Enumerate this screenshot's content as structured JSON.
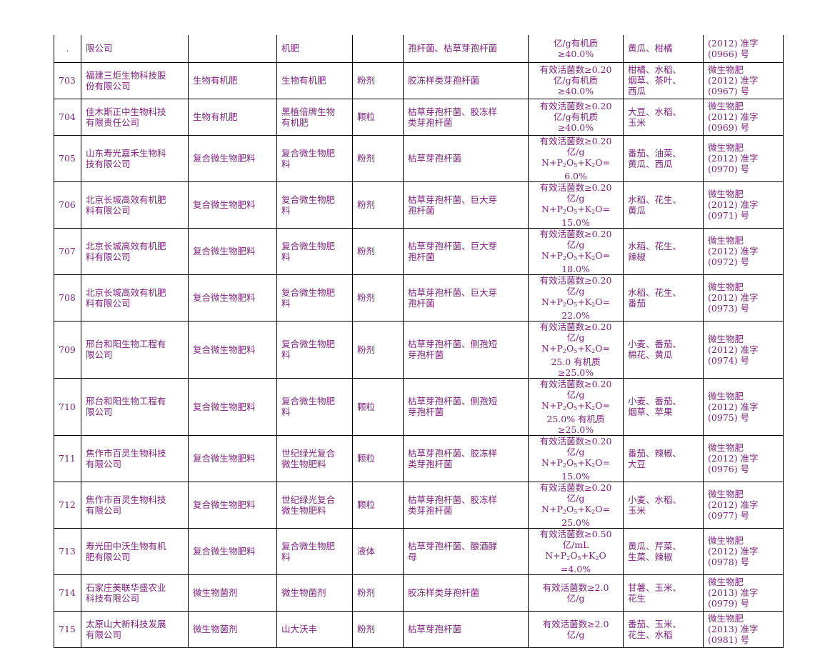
{
  "table": {
    "rows": [
      {
        "no": ".",
        "company": "限公司",
        "category": "",
        "product": "机肥",
        "form": "",
        "strain": "孢杆菌、枯草芽孢杆菌",
        "standard": "亿/g有机质\n≥40.0%",
        "crops": "黄瓜、柑橘",
        "reg_no": "(2012) 准字\n(0966) 号"
      },
      {
        "no": "703",
        "company": "福建三炬生物科技股\n份有限公司",
        "category": "生物有机肥",
        "product": "生物有机肥",
        "form": "粉剂",
        "strain": "胶冻样类芽孢杆菌",
        "standard": "有效活菌数≥0.20\n亿/g有机质\n≥40.0%",
        "crops": "柑橘、水稻、\n烟草、茶叶、\n西瓜",
        "reg_no": "微生物肥\n(2012) 准字\n(0967) 号"
      },
      {
        "no": "704",
        "company": "佳木斯正中生物科技\n有限责任公司",
        "category": "生物有机肥",
        "product": "黑植倍牌生物\n有机肥",
        "form": "颗粒",
        "strain": "枯草芽孢杆菌、胶冻样\n类芽孢杆菌",
        "standard": "有效活菌数≥0.20\n亿/g有机质\n≥40.0%",
        "crops": "大豆、水稻、\n玉米",
        "reg_no": "微生物肥\n(2012) 准字\n(0969) 号"
      },
      {
        "no": "705",
        "company": "山东寿光嘉禾生物科\n技有限公司",
        "category": "复合微生物肥料",
        "product": "复合微生物肥\n料",
        "form": "粉剂",
        "strain": "枯草芽孢杆菌",
        "standard": "有效活菌数≥0.20\n亿/g N+P2O5+K2O=\n6.0%",
        "crops": "番茄、油菜、\n黄瓜、西瓜",
        "reg_no": "微生物肥\n(2012) 准字\n(0970) 号"
      },
      {
        "no": "706",
        "company": "北京长城高效有机肥\n料有限公司",
        "category": "复合微生物肥料",
        "product": "复合微生物肥\n料",
        "form": "粉剂",
        "strain": "枯草芽孢杆菌、巨大芽\n孢杆菌",
        "standard": "有效活菌数≥0.20\n亿/g N+P2O5+K2O=\n15.0%",
        "crops": "水稻、花生、\n黄瓜",
        "reg_no": "微生物肥\n(2012) 准字\n(0971) 号"
      },
      {
        "no": "707",
        "company": "北京长城高效有机肥\n料有限公司",
        "category": "复合微生物肥料",
        "product": "复合微生物肥\n料",
        "form": "粉剂",
        "strain": "枯草芽孢杆菌、巨大芽\n孢杆菌",
        "standard": "有效活菌数≥0.20\n亿/g N+P2O5+K2O=\n18.0%",
        "crops": "水稻、花生、\n辣椒",
        "reg_no": "微生物肥\n(2012) 准字\n(0972) 号"
      },
      {
        "no": "708",
        "company": "北京长城高效有机肥\n料有限公司",
        "category": "复合微生物肥料",
        "product": "复合微生物肥\n料",
        "form": "粉剂",
        "strain": "枯草芽孢杆菌、巨大芽\n孢杆菌",
        "standard": "有效活菌数≥0.20\n亿/g N+P2O5+K2O=\n22.0%",
        "crops": "水稻、花生、\n番茄",
        "reg_no": "微生物肥\n(2012) 准字\n(0973) 号"
      },
      {
        "no": "709",
        "company": "邢台和阳生物工程有\n限公司",
        "category": "复合微生物肥料",
        "product": "复合微生物肥\n料",
        "form": "粉剂",
        "strain": "枯草芽孢杆菌、侧孢短\n芽孢杆菌",
        "standard": "有效活菌数≥0.20\n亿/g N+P2O5+K2O=\n25.0    有机质\n≥25.0%",
        "crops": "小麦、番茄、\n棉花、黄瓜",
        "reg_no": "微生物肥\n(2012) 准字\n(0974) 号"
      },
      {
        "no": "710",
        "company": "邢台和阳生物工程有\n限公司",
        "category": "复合微生物肥料",
        "product": "复合微生物肥\n料",
        "form": "颗粒",
        "strain": "枯草芽孢杆菌、侧孢短\n芽孢杆菌",
        "standard": "有效活菌数≥0.20\n亿/g N+P2O5+K2O=\n25.0% 有机质\n≥25.0%",
        "crops": "小麦、番茄、\n烟草、苹果",
        "reg_no": "微生物肥\n(2012) 准字\n(0975) 号"
      },
      {
        "no": "711",
        "company": "焦作市百灵生物科技\n有限公司",
        "category": "复合微生物肥料",
        "product": "世纪绿光复合\n微生物肥料",
        "form": "颗粒",
        "strain": "枯草芽孢杆菌、胶冻样\n类芽孢杆菌",
        "standard": "有效活菌数≥0.20\n亿/g N+P2O5+K2O=\n15.0%",
        "crops": "番茄、辣椒、\n大豆",
        "reg_no": "微生物肥\n(2012) 准字\n(0976) 号"
      },
      {
        "no": "712",
        "company": "焦作市百灵生物科技\n有限公司",
        "category": "复合微生物肥料",
        "product": "世纪绿光复合\n微生物肥料",
        "form": "颗粒",
        "strain": "枯草芽孢杆菌、胶冻样\n类芽孢杆菌",
        "standard": "有效活菌数≥0.20\n亿/g N+P2O5+K2O=\n25.0%",
        "crops": "小麦、水稻、\n玉米",
        "reg_no": "微生物肥\n(2012) 准字\n(0977) 号"
      },
      {
        "no": "713",
        "company": "寿光田中沃生物有机\n肥有限公司",
        "category": "复合微生物肥料",
        "product": "复合微生物肥\n料",
        "form": "液体",
        "strain": "枯草芽孢杆菌、酿酒酵\n母",
        "standard": "有效活菌数≥0.50\n亿/mL N+P2O5+K2O\n=4.0%",
        "crops": "黄瓜、芹菜、\n生菜、辣椒",
        "reg_no": "微生物肥\n(2012) 准字\n(0978) 号"
      },
      {
        "no": "714",
        "company": "石家庄美联华盛农业\n科技有限公司",
        "category": "微生物菌剂",
        "product": "微生物菌剂",
        "form": "粉剂",
        "strain": "胶冻样类芽孢杆菌",
        "standard": "有效活菌数≥2.0\n亿/g",
        "crops": "甘薯、玉米、\n花生",
        "reg_no": "微生物肥\n(2013) 准字\n(0979) 号"
      },
      {
        "no": "715",
        "company": "太原山大新科技发展\n有限公司",
        "category": "微生物菌剂",
        "product": "山大沃丰",
        "form": "粉剂",
        "strain": "枯草芽孢杆菌",
        "standard": "有效活菌数≥2.0\n亿/g",
        "crops": "番茄、玉米、\n花生、水稻",
        "reg_no": "微生物肥\n(2013) 准字\n(0981) 号"
      }
    ]
  }
}
